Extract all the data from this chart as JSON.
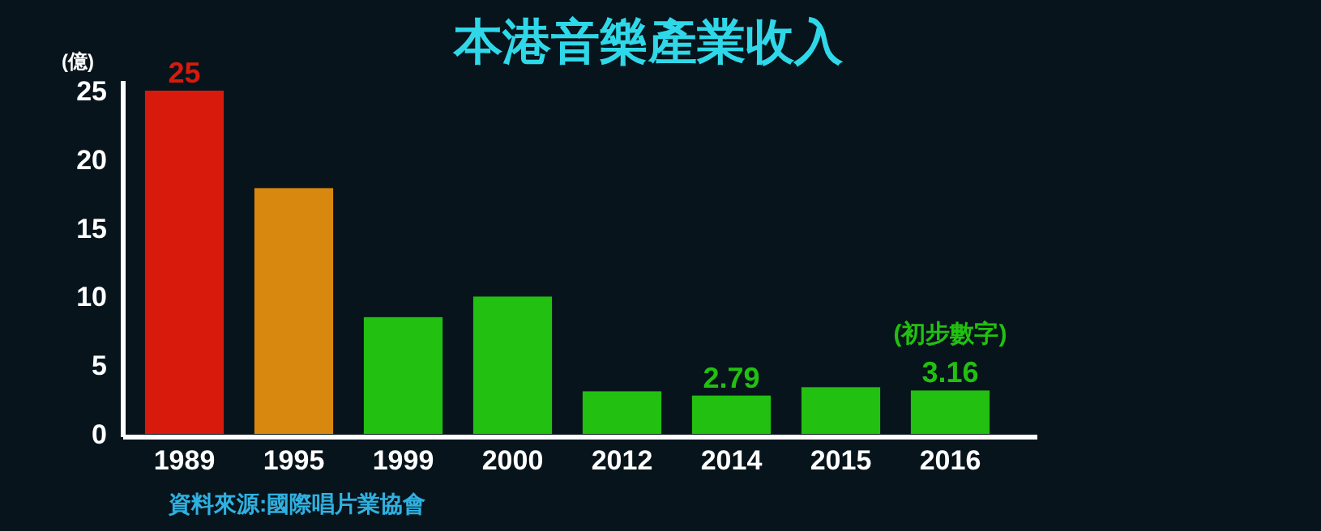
{
  "chart_data": {
    "type": "bar",
    "title": "本港音樂產業收入",
    "ylabel": "(億)",
    "categories": [
      "1989",
      "1995",
      "1999",
      "2000",
      "2012",
      "2014",
      "2015",
      "2016"
    ],
    "values": [
      25,
      17.9,
      8.5,
      10,
      3.1,
      2.79,
      3.4,
      3.16
    ],
    "colors": [
      "#d81a0c",
      "#d8880e",
      "#22c010",
      "#22c010",
      "#22c010",
      "#22c010",
      "#22c010",
      "#22c010"
    ],
    "value_labels": [
      "25",
      null,
      null,
      null,
      null,
      "2.79",
      null,
      "3.16"
    ],
    "ylim": [
      0,
      25
    ],
    "yticks": [
      0,
      5,
      10,
      15,
      20,
      25
    ],
    "annotations": [
      {
        "text": "(初步數字)",
        "x": "2016",
        "y": 3.16
      },
      "資料來源:國際唱片業協會"
    ]
  }
}
